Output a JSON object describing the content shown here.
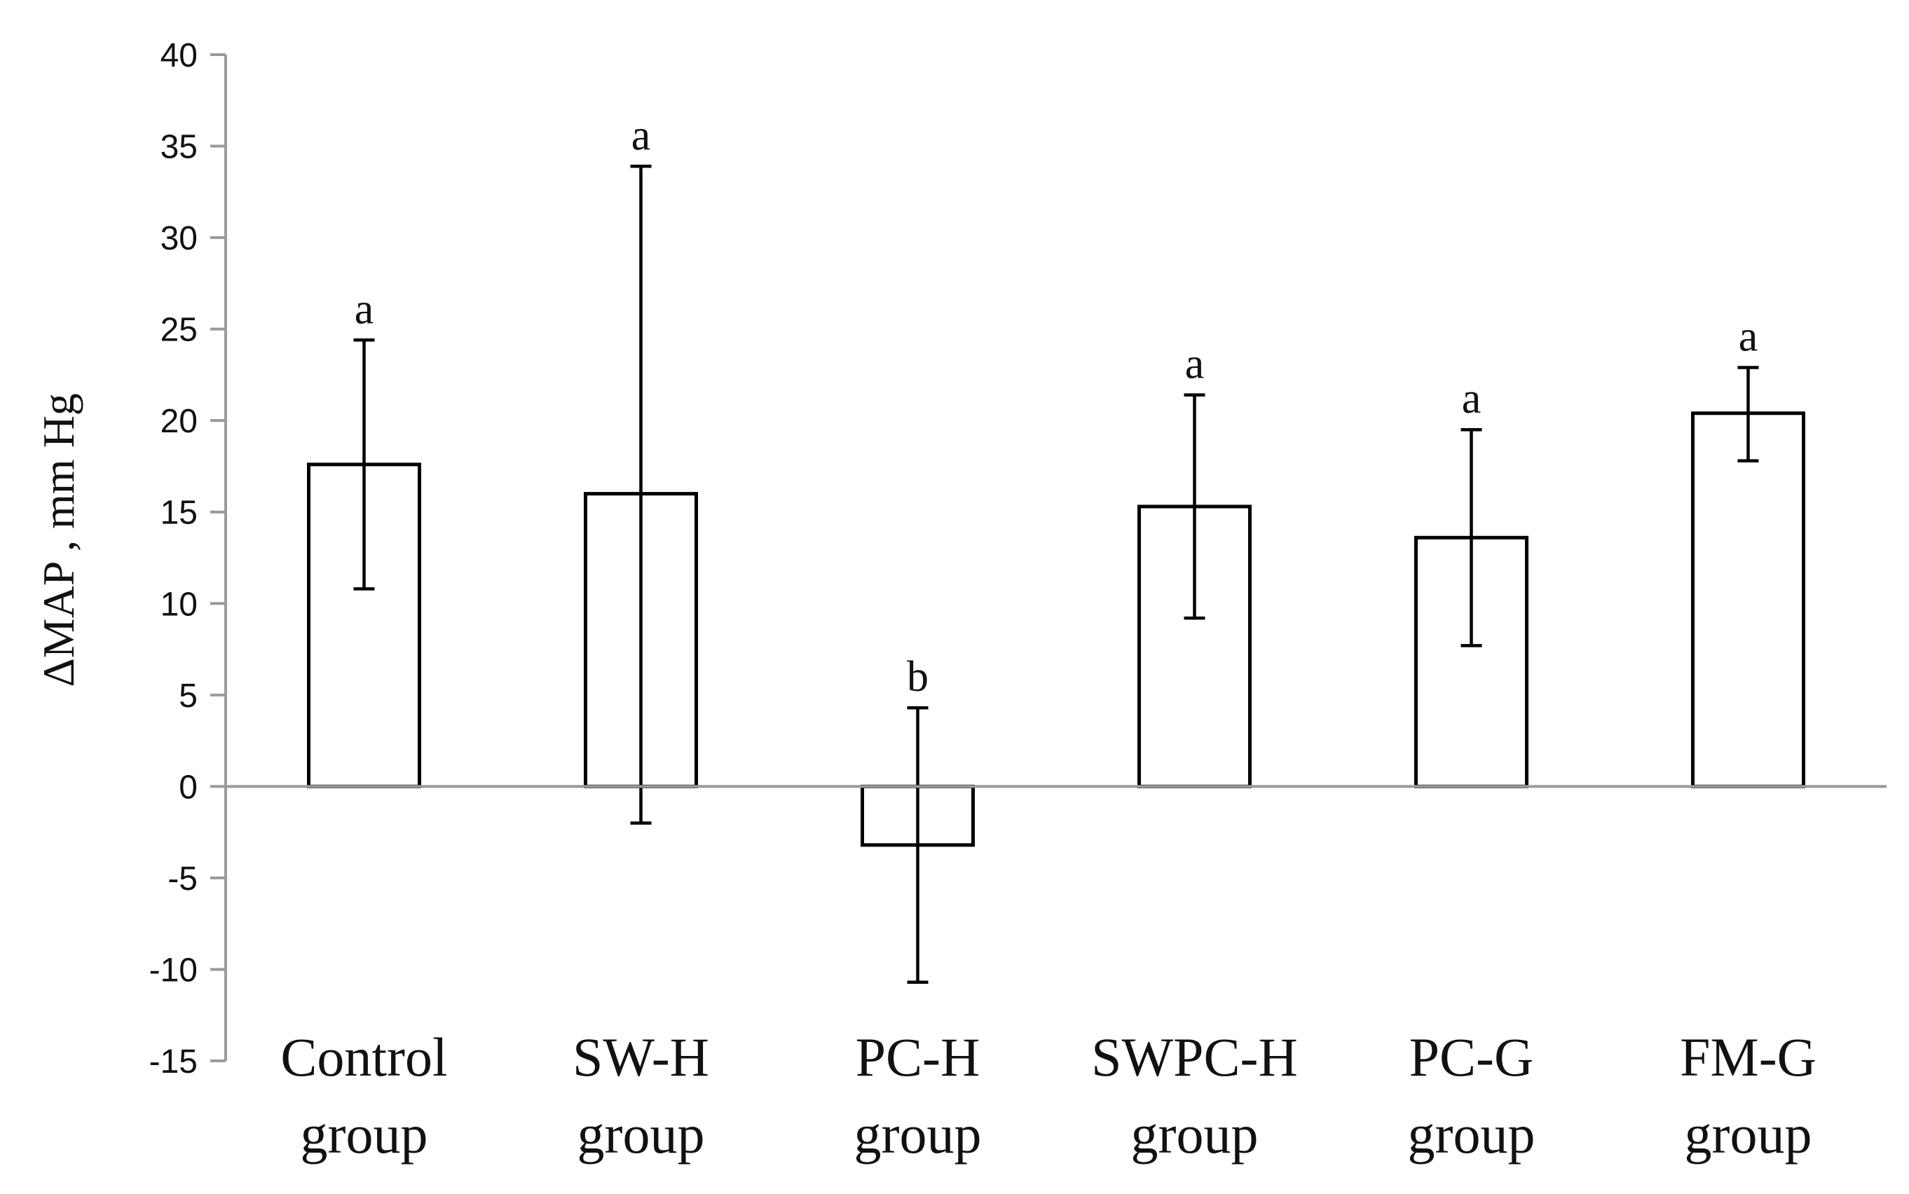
{
  "chart_data": {
    "type": "bar",
    "ylabel": "ΔMAP , mm Hg",
    "xlabel": "",
    "title": "",
    "ylim": [
      -15,
      40
    ],
    "yticks": [
      40,
      35,
      30,
      25,
      20,
      15,
      10,
      5,
      0,
      -5,
      -10,
      -15
    ],
    "grid": false,
    "categories": [
      {
        "line1": "Control",
        "line2": "group"
      },
      {
        "line1": "SW-H",
        "line2": "group"
      },
      {
        "line1": "PC-H",
        "line2": "group"
      },
      {
        "line1": "SWPC-H",
        "line2": "group"
      },
      {
        "line1": "PC-G",
        "line2": "group"
      },
      {
        "line1": "FM-G",
        "line2": "group"
      }
    ],
    "values": [
      17.6,
      16.0,
      -3.2,
      15.3,
      13.6,
      20.4
    ],
    "error_upper": [
      24.4,
      33.9,
      4.3,
      21.4,
      19.5,
      22.9
    ],
    "error_lower": [
      10.8,
      -2.0,
      -10.7,
      9.2,
      7.7,
      17.8
    ],
    "significance": [
      "a",
      "a",
      "b",
      "a",
      "a",
      "a"
    ],
    "colors": {
      "bar_fill": "#ffffff",
      "bar_stroke": "#000000",
      "axis": "#9a9a9a"
    }
  }
}
